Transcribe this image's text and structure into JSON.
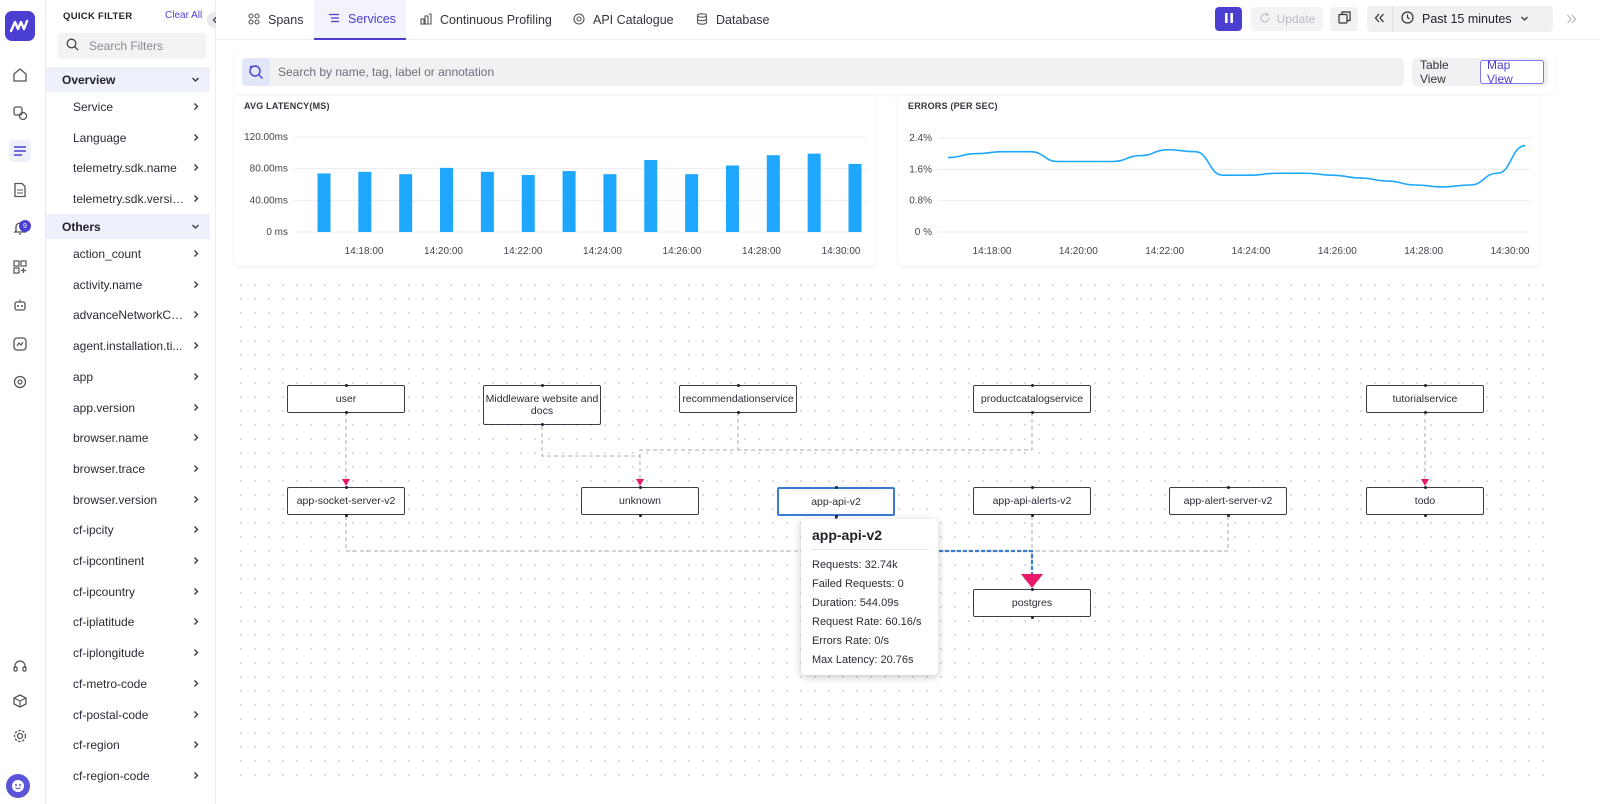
{
  "rail": {
    "notification_count": "9",
    "icons": [
      "home-icon",
      "infrastructure-icon",
      "apm-icon",
      "logs-icon",
      "alerts-icon",
      "dashboards-icon",
      "bot-icon",
      "synthetics-icon",
      "settings-chip-icon"
    ],
    "bottom_icons": [
      "support-icon",
      "integrations-icon",
      "settings-icon"
    ]
  },
  "filters": {
    "title": "QUICK FILTER",
    "clear_all": "Clear All",
    "search_placeholder": "Search Filters",
    "overview_label": "Overview",
    "overview_items": [
      "Service",
      "Language",
      "telemetry.sdk.name",
      "telemetry.sdk.version"
    ],
    "others_label": "Others",
    "others_items": [
      "action_count",
      "activity.name",
      "advanceNetworkCa...",
      "agent.installation.ti...",
      "app",
      "app.version",
      "browser.name",
      "browser.trace",
      "browser.version",
      "cf-ipcity",
      "cf-ipcontinent",
      "cf-ipcountry",
      "cf-iplatitude",
      "cf-iplongitude",
      "cf-metro-code",
      "cf-postal-code",
      "cf-region",
      "cf-region-code"
    ]
  },
  "tabs": [
    "Spans",
    "Services",
    "Continuous Profiling",
    "API Catalogue",
    "Database"
  ],
  "active_tab": "Services",
  "toolbar": {
    "update_label": "Update",
    "time_range": "Past 15 minutes"
  },
  "search": {
    "placeholder": "Search by name, tag, label or annotation"
  },
  "view_toggle": {
    "table": "Table View",
    "map": "Map View",
    "active": "Map View"
  },
  "colors": {
    "accent": "#4b3fd1",
    "series": "#1ea7fd",
    "edge_highlight": "#3a7bd5",
    "arrow": "#e8196b"
  },
  "chart_data": [
    {
      "type": "bar",
      "title": "AVG LATENCY(MS)",
      "x_ticks": [
        "14:18:00",
        "14:20:00",
        "14:22:00",
        "14:24:00",
        "14:26:00",
        "14:28:00",
        "14:30:00"
      ],
      "y_ticks": [
        "0 ms",
        "40.00ms",
        "80.00ms",
        "120.00ms"
      ],
      "ylim": [
        0,
        120
      ],
      "values": [
        74,
        76,
        73,
        81,
        76,
        72,
        77,
        73,
        91,
        73,
        84,
        97,
        99,
        86
      ]
    },
    {
      "type": "line",
      "title": "ERRORS (PER SEC)",
      "x_ticks": [
        "14:18:00",
        "14:20:00",
        "14:22:00",
        "14:24:00",
        "14:26:00",
        "14:28:00",
        "14:30:00"
      ],
      "y_ticks": [
        "0 %",
        "0.8%",
        "1.6%",
        "2.4%"
      ],
      "ylim": [
        0,
        2.4
      ],
      "values": [
        1.9,
        2.0,
        2.05,
        2.05,
        1.8,
        1.8,
        1.8,
        1.95,
        2.1,
        2.05,
        1.45,
        1.45,
        1.5,
        1.5,
        1.45,
        1.38,
        1.3,
        1.2,
        1.15,
        1.2,
        1.5,
        2.2
      ]
    }
  ],
  "service_map": {
    "nodes": [
      "user",
      "Middleware website and docs",
      "recommendationservice",
      "productcatalogservice",
      "tutorialservice",
      "app-socket-server-v2",
      "unknown",
      "app-api-v2",
      "app-api-alerts-v2",
      "app-alert-server-v2",
      "todo",
      "postgres"
    ],
    "selected": "app-api-v2"
  },
  "tooltip": {
    "title": "app-api-v2",
    "rows": [
      "Requests: 32.74k",
      "Failed Requests: 0",
      "Duration: 544.09s",
      "Request Rate: 60.16/s",
      "Errors Rate: 0/s",
      "Max Latency: 20.76s"
    ]
  }
}
